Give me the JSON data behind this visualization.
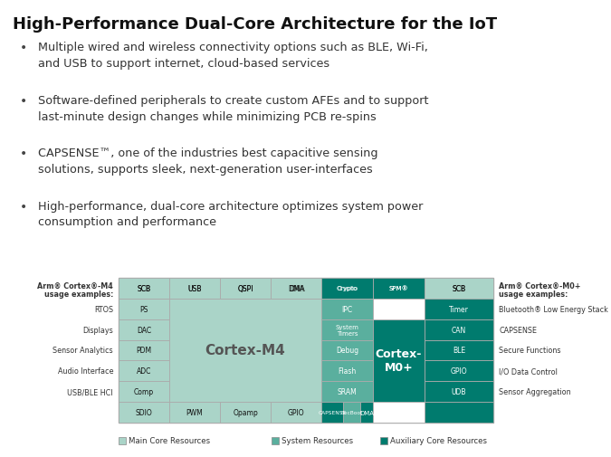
{
  "title": "High-Performance Dual-Core Architecture for the IoT",
  "bullets": [
    "Multiple wired and wireless connectivity options such as BLE, Wi-Fi,\nand USB to support internet, cloud-based services",
    "Software-defined peripherals to create custom AFEs and to support\nlast-minute design changes while minimizing PCB re-spins",
    "CAPSENSE™, one of the industries best capacitive sensing\nsolutions, supports sleek, next-generation user-interfaces",
    "High-performance, dual-core architecture optimizes system power\nconsumption and performance"
  ],
  "color_light": "#aad4c8",
  "color_mid": "#5aaf9e",
  "color_dark": "#007b6e",
  "bg_color": "#ffffff",
  "left_labels_title1": "Arm® Cortex®-M4",
  "left_labels_title2": "usage examples:",
  "left_labels": [
    "RTOS",
    "Displays",
    "Sensor Analytics",
    "Audio Interface",
    "USB/BLE HCI"
  ],
  "right_labels_title1": "Arm® Cortex®-M0+",
  "right_labels_title2": "usage examples:",
  "right_labels": [
    "Bluetooth® Low Energy Stack",
    "CAPSENSE",
    "Secure Functions",
    "I/O Data Control",
    "Sensor Aggregation"
  ],
  "legend_items": [
    {
      "label": "Main Core Resources",
      "color": "#aad4c8"
    },
    {
      "label": "System Resources",
      "color": "#5aaf9e"
    },
    {
      "label": "Auxiliary Core Resources",
      "color": "#007b6e"
    }
  ]
}
